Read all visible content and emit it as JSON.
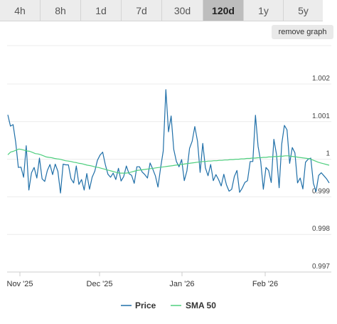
{
  "timeframes": [
    {
      "label": "4h",
      "active": false
    },
    {
      "label": "8h",
      "active": false
    },
    {
      "label": "1d",
      "active": false
    },
    {
      "label": "7d",
      "active": false
    },
    {
      "label": "30d",
      "active": false
    },
    {
      "label": "120d",
      "active": true
    },
    {
      "label": "1y",
      "active": false
    },
    {
      "label": "5y",
      "active": false
    }
  ],
  "remove_graph_label": "remove graph",
  "colors": {
    "price": "#1f6fa8",
    "sma": "#4fcf7f",
    "active_tab": "#bdbdbd",
    "tab": "#ececec"
  },
  "chart_data": {
    "type": "line",
    "x_labels": [
      "Nov '25",
      "Dec '25",
      "Jan '26",
      "Feb '26"
    ],
    "y_ticks": [
      "1.002",
      "1.001",
      "1",
      "0.999",
      "0.998",
      "0.997"
    ],
    "ylim": [
      0.997,
      1.002
    ],
    "grid": true,
    "legend_position": "bottom",
    "series": [
      {
        "name": "Price",
        "values": [
          1.00118,
          1.00088,
          1.00092,
          1.00045,
          0.99978,
          0.99979,
          0.99952,
          1.00036,
          0.99918,
          0.99964,
          0.99978,
          0.9995,
          1.00003,
          0.99948,
          0.99941,
          0.9997,
          0.99986,
          0.99959,
          0.99987,
          0.99968,
          0.9991,
          0.99987,
          0.99985,
          0.99985,
          0.99948,
          0.99937,
          0.99982,
          0.99933,
          0.99946,
          0.99918,
          0.99962,
          0.9992,
          0.99952,
          0.99968,
          0.99997,
          1.00011,
          1.00019,
          0.99986,
          0.9996,
          0.99952,
          0.99963,
          0.99946,
          0.99976,
          0.99942,
          0.99954,
          0.99982,
          0.99962,
          0.99957,
          0.99936,
          0.9998,
          0.9998,
          0.99966,
          0.99959,
          0.9995,
          0.9999,
          0.99974,
          0.99956,
          0.99926,
          0.99977,
          1.00022,
          1.00185,
          1.00073,
          1.00115,
          1.00026,
          0.99994,
          0.9998,
          0.99999,
          0.99943,
          0.99969,
          1.00029,
          1.00048,
          1.00087,
          1.00048,
          0.99965,
          1.00042,
          0.99977,
          0.99956,
          0.99986,
          0.99943,
          0.99959,
          0.99946,
          0.99929,
          0.9996,
          0.99932,
          0.99915,
          0.9992,
          0.99954,
          0.9997,
          0.99912,
          0.99923,
          0.99938,
          0.99943,
          0.99994,
          0.99994,
          1.00117,
          1.00034,
          0.99994,
          0.9992,
          0.99978,
          0.9997,
          0.99938,
          1.00053,
          1.00013,
          0.99924,
          1.00041,
          1.0009,
          1.00078,
          0.99989,
          1.00031,
          1.00017,
          0.99937,
          0.9995,
          0.99921,
          0.99992,
          1.0,
          1.00003,
          0.99936,
          0.99914,
          0.99957,
          0.99964,
          0.99956,
          0.99948,
          0.99937
        ]
      },
      {
        "name": "SMA 50",
        "values": [
          1.00012,
          1.00019,
          1.00021,
          1.00024,
          1.00027,
          1.00026,
          1.00024,
          1.00022,
          1.00021,
          1.00018,
          1.00015,
          1.00014,
          1.00012,
          1.00009,
          1.00006,
          1.00005,
          1.00004,
          1.00002,
          1.00001,
          1.0,
          0.99998,
          0.99996,
          0.99995,
          0.99994,
          0.99992,
          0.99991,
          0.99989,
          0.99988,
          0.99986,
          0.99984,
          0.99983,
          0.99981,
          0.99979,
          0.99978,
          0.99976,
          0.99974,
          0.99972,
          0.9997,
          0.99968,
          0.99966,
          0.99964,
          0.99963,
          0.99963,
          0.99963,
          0.99964,
          0.99966,
          0.99968,
          0.9997,
          0.99971,
          0.99972,
          0.99973,
          0.99974,
          0.99975,
          0.99976,
          0.99977,
          0.99978,
          0.99979,
          0.9998,
          0.99981,
          0.99982,
          0.99983,
          0.99984,
          0.99985,
          0.99986,
          0.99987,
          0.99988,
          0.99989,
          0.9999,
          0.99991,
          0.99992,
          0.99993,
          0.99994,
          0.99994,
          0.99995,
          0.99995,
          0.99996,
          0.99996,
          0.99997,
          0.99997,
          0.99998,
          0.99998,
          0.99999,
          0.99999,
          1.0,
          1.0,
          1.00001,
          1.00001,
          1.00002,
          1.00002,
          1.00003,
          1.00003,
          1.00004,
          1.00004,
          1.00005,
          1.00005,
          1.00006,
          1.00006,
          1.00007,
          1.00007,
          1.00008,
          1.00008,
          1.00009,
          1.00009,
          1.00008,
          1.00007,
          1.00006,
          1.00005,
          1.00004,
          1.00003,
          1.00002,
          1.00001,
          0.99998,
          0.99995,
          0.99992,
          0.9999,
          0.99988,
          0.99986,
          0.99984
        ]
      }
    ]
  }
}
